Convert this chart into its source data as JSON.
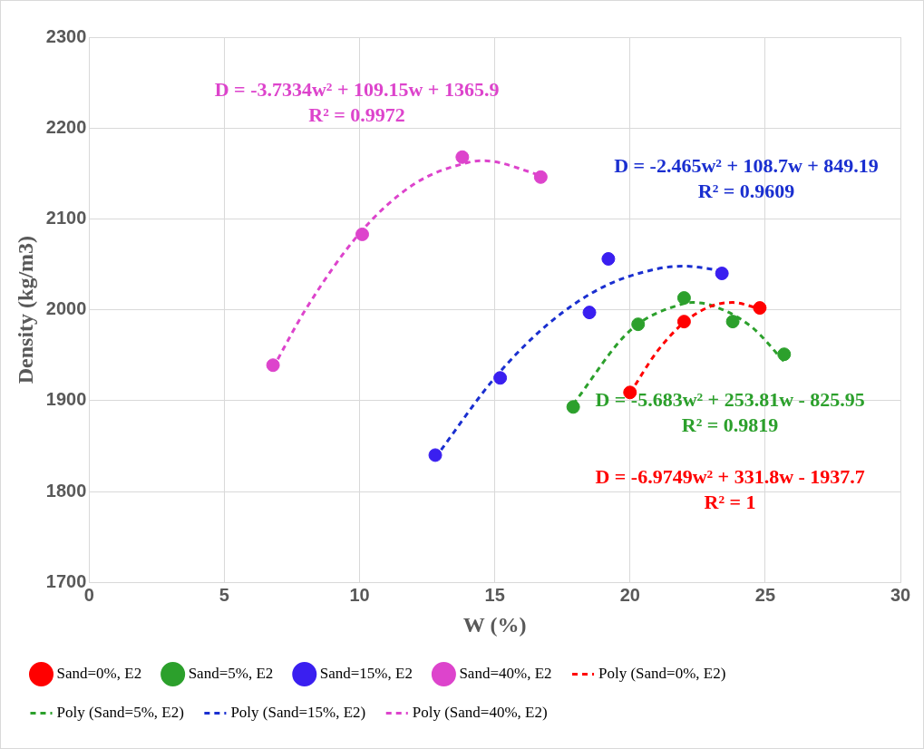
{
  "chart_data": {
    "type": "scatter",
    "xlabel": "W (%)",
    "ylabel": "Density (kg/m3)",
    "xlim": [
      0,
      30
    ],
    "xticks": [
      0,
      5,
      10,
      15,
      20,
      25,
      30
    ],
    "ylim": [
      1700,
      2300
    ],
    "yticks": [
      1700,
      1800,
      1900,
      2000,
      2100,
      2200,
      2300
    ],
    "grid": true,
    "legend": "bottom",
    "marker": "circle",
    "series": [
      {
        "name": "Sand=0%, E2",
        "color": "#ff0000",
        "x": [
          20,
          22,
          24.8
        ],
        "values": [
          1909,
          1987,
          2002
        ]
      },
      {
        "name": "Sand=5%, E2",
        "color": "#2ca02c",
        "x": [
          17.9,
          20.3,
          22,
          23.8,
          25.7
        ],
        "values": [
          1893,
          1984,
          2013,
          1987,
          1951
        ]
      },
      {
        "name": "Sand=15%, E2",
        "color": "#3a1ff0",
        "x": [
          12.8,
          15.2,
          18.5,
          19.2,
          23.4
        ],
        "values": [
          1840,
          1925,
          1997,
          2056,
          2040
        ]
      },
      {
        "name": "Sand=40%, E2",
        "color": "#dd44cc",
        "x": [
          6.8,
          10.1,
          13.8,
          16.7
        ],
        "values": [
          1939,
          2083,
          2168,
          2146
        ]
      },
      {
        "name": "Poly (Sand=0%, E2)",
        "type": "line",
        "line_style": "dashed",
        "marker": "none",
        "color": "#ff0000",
        "x": [
          20,
          21,
          22,
          23,
          23.8,
          24.8
        ],
        "values": [
          1908,
          1954,
          1986,
          2004,
          2008,
          2001
        ]
      },
      {
        "name": "Poly (Sand=5%, E2)",
        "type": "line",
        "line_style": "dashed",
        "marker": "none",
        "color": "#2ca02c",
        "x": [
          17.9,
          20,
          22,
          22.3,
          23,
          24.5,
          25.7
        ],
        "values": [
          1896,
          1977,
          2007,
          2008,
          2005,
          1981,
          1943
        ]
      },
      {
        "name": "Poly (Sand=15%, E2)",
        "type": "line",
        "line_style": "dashed",
        "marker": "none",
        "color": "#1a2fd0",
        "x": [
          12.8,
          15,
          17,
          19,
          21,
          22,
          23.4
        ],
        "values": [
          1837,
          1925,
          1985,
          2025,
          2045,
          2048,
          2043
        ]
      },
      {
        "name": "Poly (Sand=40%, E2)",
        "type": "line",
        "line_style": "dashed",
        "marker": "none",
        "color": "#dd44cc",
        "x": [
          6.8,
          8,
          10,
          12,
          14,
          14.6,
          16.7
        ],
        "values": [
          1936,
          2000,
          2084,
          2138,
          2162,
          2164,
          2148
        ]
      }
    ],
    "annotations": [
      "D = -6.9749w² + 331.8w - 1937.7\nR² = 1",
      "D = -5.683w² + 253.81w - 825.95\nR² = 0.9819",
      "D = -2.465w² + 108.7w + 849.19\nR² = 0.9609",
      "D = -3.7334w² + 109.15w + 1365.9\nR² = 0.9972"
    ]
  }
}
